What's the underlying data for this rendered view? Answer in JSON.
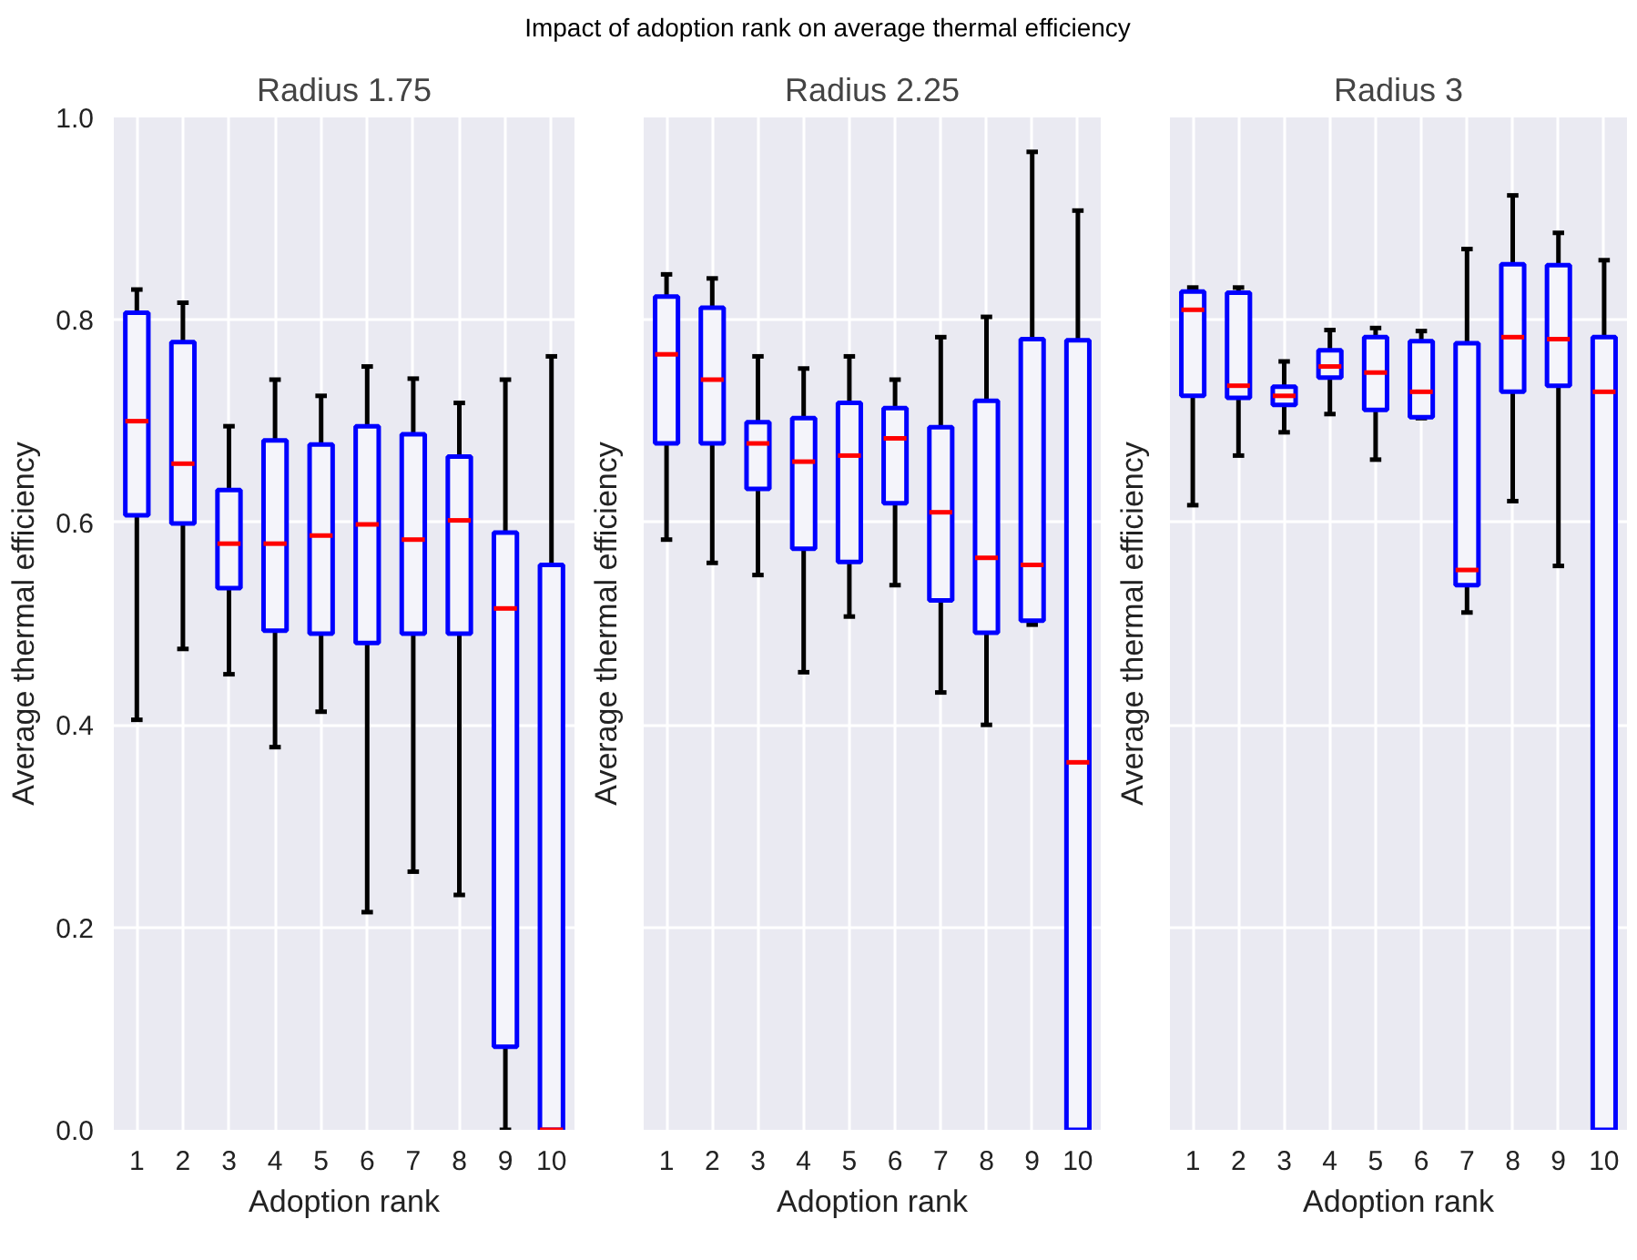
{
  "chart_data": [
    {
      "type": "box",
      "title": "Radius 1.75",
      "annotations": [
        "Impact of adoption rank on average thermal efficiency"
      ],
      "xlabel": "Adoption rank",
      "ylabel": "Average thermal efficiency",
      "categories": [
        "1",
        "2",
        "3",
        "4",
        "5",
        "6",
        "7",
        "8",
        "9",
        "10"
      ],
      "ylim": [
        0,
        1
      ],
      "yticks": [
        {
          "value": 0,
          "label": "0.0"
        },
        0.2,
        0.4,
        0.6,
        0.8,
        {
          "value": 1,
          "label": "1.0"
        }
      ],
      "grid": true,
      "series": [
        {
          "color": "#0000ff",
          "boxes": [
            {
              "low": 0.405,
              "q1": 0.607,
              "median": 0.7,
              "q3": 0.807,
              "high": 0.83
            },
            {
              "low": 0.475,
              "q1": 0.599,
              "median": 0.658,
              "q3": 0.778,
              "high": 0.817
            },
            {
              "low": 0.45,
              "q1": 0.535,
              "median": 0.579,
              "q3": 0.632,
              "high": 0.695
            },
            {
              "low": 0.378,
              "q1": 0.493,
              "median": 0.579,
              "q3": 0.681,
              "high": 0.741
            },
            {
              "low": 0.413,
              "q1": 0.49,
              "median": 0.587,
              "q3": 0.677,
              "high": 0.725
            },
            {
              "low": 0.215,
              "q1": 0.481,
              "median": 0.598,
              "q3": 0.695,
              "high": 0.754
            },
            {
              "low": 0.255,
              "q1": 0.49,
              "median": 0.583,
              "q3": 0.687,
              "high": 0.742
            },
            {
              "low": 0.232,
              "q1": 0.49,
              "median": 0.602,
              "q3": 0.665,
              "high": 0.718
            },
            {
              "low": 0.0,
              "q1": 0.082,
              "median": 0.515,
              "q3": 0.59,
              "high": 0.741
            },
            {
              "low": 0.0,
              "q1": 0.0,
              "median": 0.0,
              "q3": 0.558,
              "high": 0.764
            }
          ]
        }
      ]
    },
    {
      "type": "box",
      "title": "Radius 2.25",
      "xlabel": "Adoption rank",
      "ylabel": "Average thermal efficiency",
      "categories": [
        "1",
        "2",
        "3",
        "4",
        "5",
        "6",
        "7",
        "8",
        "9",
        "10"
      ],
      "ylim": [
        0,
        1
      ],
      "yticks": [
        0,
        0.2,
        0.4,
        0.6,
        0.8,
        1
      ],
      "grid": true,
      "tick_labels": "x",
      "series": [
        {
          "color": "#0000ff",
          "boxes": [
            {
              "low": 0.583,
              "q1": 0.678,
              "median": 0.766,
              "q3": 0.823,
              "high": 0.845
            },
            {
              "low": 0.56,
              "q1": 0.678,
              "median": 0.741,
              "q3": 0.812,
              "high": 0.841
            },
            {
              "low": 0.548,
              "q1": 0.633,
              "median": 0.678,
              "q3": 0.699,
              "high": 0.764
            },
            {
              "low": 0.452,
              "q1": 0.574,
              "median": 0.66,
              "q3": 0.703,
              "high": 0.752
            },
            {
              "low": 0.507,
              "q1": 0.561,
              "median": 0.666,
              "q3": 0.718,
              "high": 0.764
            },
            {
              "low": 0.538,
              "q1": 0.619,
              "median": 0.683,
              "q3": 0.713,
              "high": 0.741
            },
            {
              "low": 0.432,
              "q1": 0.523,
              "median": 0.61,
              "q3": 0.694,
              "high": 0.783
            },
            {
              "low": 0.4,
              "q1": 0.491,
              "median": 0.565,
              "q3": 0.72,
              "high": 0.803
            },
            {
              "low": 0.499,
              "q1": 0.503,
              "median": 0.558,
              "q3": 0.781,
              "high": 0.966
            },
            {
              "low": 0.0,
              "q1": 0.0,
              "median": 0.363,
              "q3": 0.78,
              "high": 0.908
            }
          ]
        }
      ]
    },
    {
      "type": "box",
      "title": "Radius 3",
      "xlabel": "Adoption rank",
      "ylabel": "Average thermal efficiency",
      "categories": [
        "1",
        "2",
        "3",
        "4",
        "5",
        "6",
        "7",
        "8",
        "9",
        "10"
      ],
      "ylim": [
        0,
        1
      ],
      "yticks": [
        0,
        0.2,
        0.4,
        0.6,
        0.8,
        1
      ],
      "grid": true,
      "tick_labels": "x",
      "series": [
        {
          "color": "#0000ff",
          "boxes": [
            {
              "low": 0.617,
              "q1": 0.725,
              "median": 0.81,
              "q3": 0.828,
              "high": 0.832
            },
            {
              "low": 0.666,
              "q1": 0.723,
              "median": 0.735,
              "q3": 0.827,
              "high": 0.832
            },
            {
              "low": 0.689,
              "q1": 0.716,
              "median": 0.725,
              "q3": 0.734,
              "high": 0.759
            },
            {
              "low": 0.707,
              "q1": 0.743,
              "median": 0.754,
              "q3": 0.77,
              "high": 0.79
            },
            {
              "low": 0.662,
              "q1": 0.711,
              "median": 0.748,
              "q3": 0.783,
              "high": 0.792
            },
            {
              "low": 0.703,
              "q1": 0.704,
              "median": 0.729,
              "q3": 0.779,
              "high": 0.789
            },
            {
              "low": 0.511,
              "q1": 0.538,
              "median": 0.553,
              "q3": 0.777,
              "high": 0.87
            },
            {
              "low": 0.621,
              "q1": 0.729,
              "median": 0.783,
              "q3": 0.855,
              "high": 0.923
            },
            {
              "low": 0.557,
              "q1": 0.735,
              "median": 0.781,
              "q3": 0.854,
              "high": 0.886
            },
            {
              "low": 0.0,
              "q1": 0.0,
              "median": 0.729,
              "q3": 0.783,
              "high": 0.859
            }
          ]
        }
      ]
    }
  ]
}
